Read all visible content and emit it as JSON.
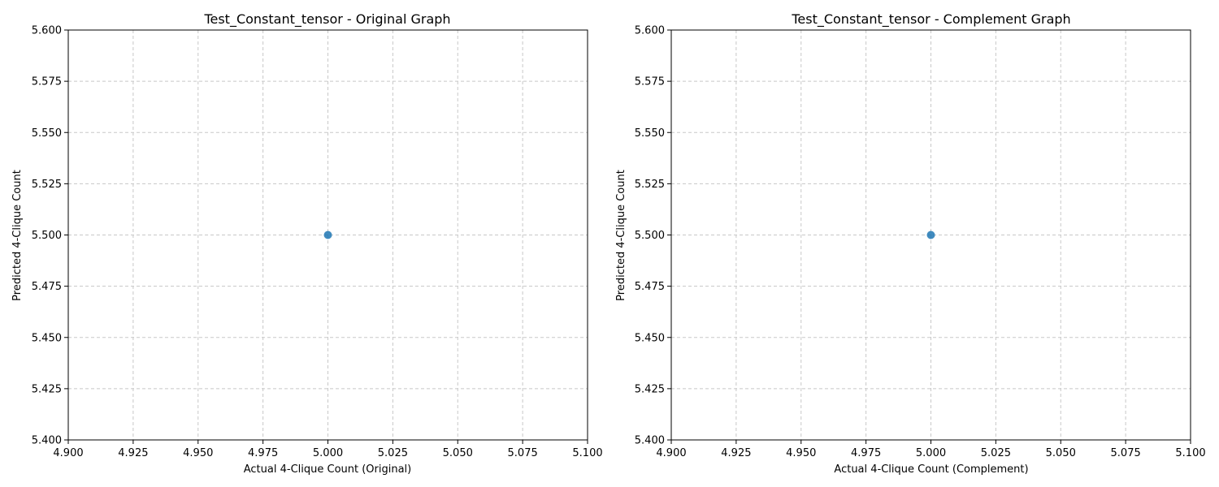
{
  "colors": {
    "marker": "#1f77b4",
    "grid": "#c8c8c8",
    "axis": "#000000"
  },
  "chart_data": [
    {
      "type": "scatter",
      "title": "Test_Constant_tensor - Original Graph",
      "xlabel": "Actual 4-Clique Count (Original)",
      "ylabel": "Predicted 4-Clique Count",
      "xlim": [
        4.9,
        5.1
      ],
      "ylim": [
        5.4,
        5.6
      ],
      "xticks": [
        "4.900",
        "4.925",
        "4.950",
        "4.975",
        "5.000",
        "5.025",
        "5.050",
        "5.075",
        "5.100"
      ],
      "yticks": [
        "5.400",
        "5.425",
        "5.450",
        "5.475",
        "5.500",
        "5.525",
        "5.550",
        "5.575",
        "5.600"
      ],
      "grid": true,
      "series": [
        {
          "x": [
            5.0
          ],
          "y": [
            5.5
          ]
        }
      ]
    },
    {
      "type": "scatter",
      "title": "Test_Constant_tensor - Complement Graph",
      "xlabel": "Actual 4-Clique Count (Complement)",
      "ylabel": "Predicted 4-Clique Count",
      "xlim": [
        4.9,
        5.1
      ],
      "ylim": [
        5.4,
        5.6
      ],
      "xticks": [
        "4.900",
        "4.925",
        "4.950",
        "4.975",
        "5.000",
        "5.025",
        "5.050",
        "5.075",
        "5.100"
      ],
      "yticks": [
        "5.400",
        "5.425",
        "5.450",
        "5.475",
        "5.500",
        "5.525",
        "5.550",
        "5.575",
        "5.600"
      ],
      "grid": true,
      "series": [
        {
          "x": [
            5.0
          ],
          "y": [
            5.5
          ]
        }
      ]
    }
  ]
}
